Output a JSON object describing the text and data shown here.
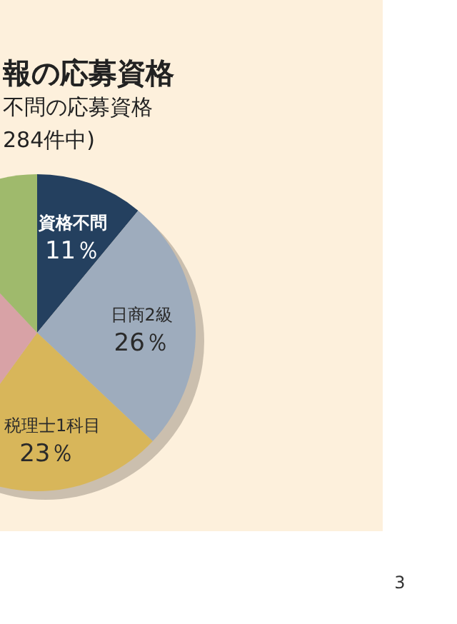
{
  "chart_data": {
    "type": "pie",
    "title": "報の応募資格",
    "subtitle": "不問の応募資格\n284件中)",
    "categories": [
      "資格不問",
      "日商2級",
      "税理士1科目",
      null,
      null
    ],
    "values": [
      11,
      26,
      23,
      28,
      12
    ],
    "colors": [
      "#24405f",
      "#9eacbd",
      "#d8b65a",
      "#d8a2a6",
      "#9fba6c"
    ],
    "value_labels": [
      "11％",
      "26％",
      "23％",
      null,
      null
    ],
    "annotations": [
      "3"
    ]
  }
}
